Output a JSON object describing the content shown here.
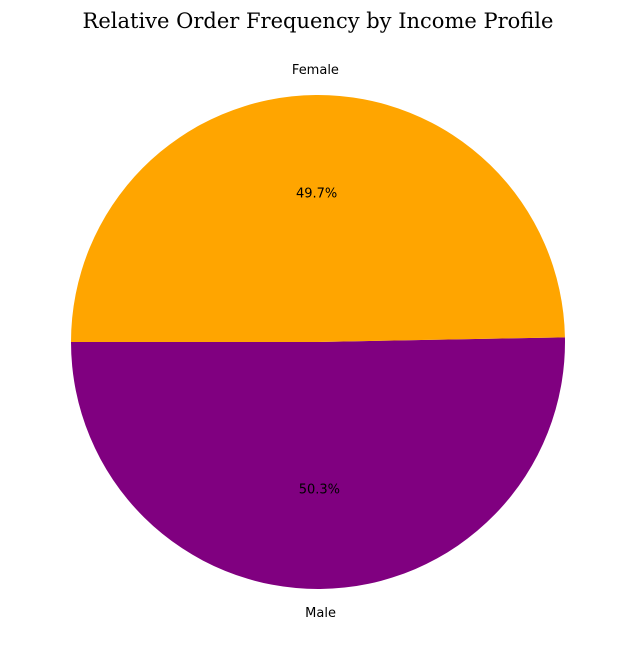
{
  "chart_data": {
    "type": "pie",
    "title": "Relative Order Frequency by Income Profile",
    "categories": [
      "Male",
      "Female"
    ],
    "values": [
      50.3,
      49.7
    ],
    "percent_labels": [
      "50.3%",
      "49.7%"
    ],
    "colors": [
      "#800080",
      "#FFA500"
    ],
    "start_angle_deg": 180,
    "direction": "counterclockwise"
  }
}
